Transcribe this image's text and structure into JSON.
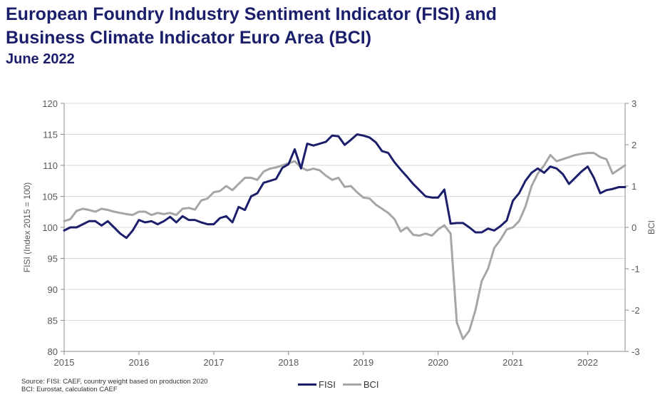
{
  "header": {
    "title_line1": "European Foundry Industry Sentiment Indicator (FISI) and",
    "title_line2": "Business Climate Indicator Euro Area (BCI)",
    "subtitle": "June 2022"
  },
  "source": {
    "line1": "Source: FISI: CAEF, country weight based on production 2020",
    "line2": "BCI: Eurostat, calculation CAEF"
  },
  "colors": {
    "title": "#1b1f6b",
    "fisi": "#1b1f6b",
    "bci": "#a6a6a6",
    "axis": "#8c8c8c",
    "tick_text": "#595959"
  },
  "chart_data": {
    "type": "line",
    "xlabel": "",
    "ylabel": "FISI (Index 2015 = 100)",
    "y2label": "BCI",
    "xlim": [
      2015,
      2022.5
    ],
    "ylim": [
      80,
      120
    ],
    "y2lim": [
      -3,
      3
    ],
    "x_ticks": [
      2015,
      2016,
      2017,
      2018,
      2019,
      2020,
      2021,
      2022
    ],
    "y_ticks": [
      80,
      85,
      90,
      95,
      100,
      105,
      110,
      115,
      120
    ],
    "y2_ticks": [
      -3,
      -2,
      -1,
      0,
      1,
      2,
      3
    ],
    "grid": "horizontal",
    "legend_position": "bottom-center",
    "series": [
      {
        "name": "FISI",
        "axis": "left",
        "x": [
          2015.0,
          2015.083,
          2015.167,
          2015.25,
          2015.333,
          2015.417,
          2015.5,
          2015.583,
          2015.667,
          2015.75,
          2015.833,
          2015.917,
          2016.0,
          2016.083,
          2016.167,
          2016.25,
          2016.333,
          2016.417,
          2016.5,
          2016.583,
          2016.667,
          2016.75,
          2016.833,
          2016.917,
          2017.0,
          2017.083,
          2017.167,
          2017.25,
          2017.333,
          2017.417,
          2017.5,
          2017.583,
          2017.667,
          2017.75,
          2017.833,
          2017.917,
          2018.0,
          2018.083,
          2018.167,
          2018.25,
          2018.333,
          2018.417,
          2018.5,
          2018.583,
          2018.667,
          2018.75,
          2018.833,
          2018.917,
          2019.0,
          2019.083,
          2019.167,
          2019.25,
          2019.333,
          2019.417,
          2019.5,
          2019.583,
          2019.667,
          2019.75,
          2019.833,
          2019.917,
          2020.0,
          2020.083,
          2020.167,
          2020.25,
          2020.333,
          2020.417,
          2020.5,
          2020.583,
          2020.667,
          2020.75,
          2020.833,
          2020.917,
          2021.0,
          2021.083,
          2021.167,
          2021.25,
          2021.333,
          2021.417,
          2021.5,
          2021.583,
          2021.667,
          2021.75,
          2021.833,
          2021.917,
          2022.0,
          2022.083,
          2022.167,
          2022.25,
          2022.333,
          2022.417,
          2022.5
        ],
        "values": [
          99.5,
          100.0,
          100.0,
          100.5,
          101.0,
          101.0,
          100.3,
          101.0,
          100.0,
          99.0,
          98.3,
          99.5,
          101.2,
          100.8,
          101.0,
          100.5,
          101.0,
          101.7,
          100.8,
          101.8,
          101.2,
          101.2,
          100.8,
          100.5,
          100.5,
          101.5,
          101.8,
          100.8,
          103.3,
          102.8,
          105.0,
          105.5,
          107.2,
          107.5,
          107.8,
          109.6,
          110.2,
          112.6,
          109.5,
          113.5,
          113.2,
          113.5,
          113.8,
          114.8,
          114.7,
          113.3,
          114.1,
          115.0,
          114.8,
          114.5,
          113.7,
          112.3,
          112.0,
          110.5,
          109.3,
          108.2,
          107.0,
          106.0,
          105.0,
          104.8,
          104.8,
          106.1,
          100.6,
          100.7,
          100.7,
          100.0,
          99.2,
          99.2,
          99.8,
          99.5,
          100.2,
          101.1,
          104.3,
          105.5,
          107.5,
          108.8,
          109.5,
          108.8,
          109.8,
          109.5,
          108.6,
          107.0,
          108.0,
          109.0,
          109.8,
          108.0,
          105.5,
          106.0,
          106.2,
          106.5,
          106.5
        ]
      },
      {
        "name": "BCI",
        "axis": "right",
        "x": [
          2015.0,
          2015.083,
          2015.167,
          2015.25,
          2015.333,
          2015.417,
          2015.5,
          2015.583,
          2015.667,
          2015.75,
          2015.833,
          2015.917,
          2016.0,
          2016.083,
          2016.167,
          2016.25,
          2016.333,
          2016.417,
          2016.5,
          2016.583,
          2016.667,
          2016.75,
          2016.833,
          2016.917,
          2017.0,
          2017.083,
          2017.167,
          2017.25,
          2017.333,
          2017.417,
          2017.5,
          2017.583,
          2017.667,
          2017.75,
          2017.833,
          2017.917,
          2018.0,
          2018.083,
          2018.167,
          2018.25,
          2018.333,
          2018.417,
          2018.5,
          2018.583,
          2018.667,
          2018.75,
          2018.833,
          2018.917,
          2019.0,
          2019.083,
          2019.167,
          2019.25,
          2019.333,
          2019.417,
          2019.5,
          2019.583,
          2019.667,
          2019.75,
          2019.833,
          2019.917,
          2020.0,
          2020.083,
          2020.167,
          2020.25,
          2020.333,
          2020.417,
          2020.5,
          2020.583,
          2020.667,
          2020.75,
          2020.833,
          2020.917,
          2021.0,
          2021.083,
          2021.167,
          2021.25,
          2021.333,
          2021.417,
          2021.5,
          2021.583,
          2021.667,
          2021.75,
          2021.833,
          2021.917,
          2022.0,
          2022.083,
          2022.167,
          2022.25,
          2022.333,
          2022.417,
          2022.5
        ],
        "values": [
          0.15,
          0.2,
          0.4,
          0.45,
          0.42,
          0.38,
          0.45,
          0.42,
          0.38,
          0.35,
          0.32,
          0.3,
          0.38,
          0.38,
          0.3,
          0.35,
          0.32,
          0.35,
          0.3,
          0.45,
          0.47,
          0.43,
          0.65,
          0.7,
          0.85,
          0.88,
          1.0,
          0.9,
          1.05,
          1.2,
          1.2,
          1.15,
          1.35,
          1.42,
          1.45,
          1.5,
          1.55,
          1.6,
          1.45,
          1.38,
          1.42,
          1.38,
          1.25,
          1.15,
          1.2,
          0.98,
          1.0,
          0.85,
          0.72,
          0.7,
          0.55,
          0.45,
          0.35,
          0.2,
          -0.1,
          0.0,
          -0.18,
          -0.2,
          -0.15,
          -0.2,
          -0.05,
          0.05,
          -0.15,
          -2.3,
          -2.7,
          -2.5,
          -2.0,
          -1.3,
          -1.0,
          -0.5,
          -0.3,
          -0.05,
          0.0,
          0.15,
          0.5,
          1.0,
          1.3,
          1.5,
          1.75,
          1.6,
          1.65,
          1.7,
          1.75,
          1.78,
          1.8,
          1.8,
          1.7,
          1.65,
          1.3,
          1.4,
          1.5
        ]
      }
    ]
  }
}
